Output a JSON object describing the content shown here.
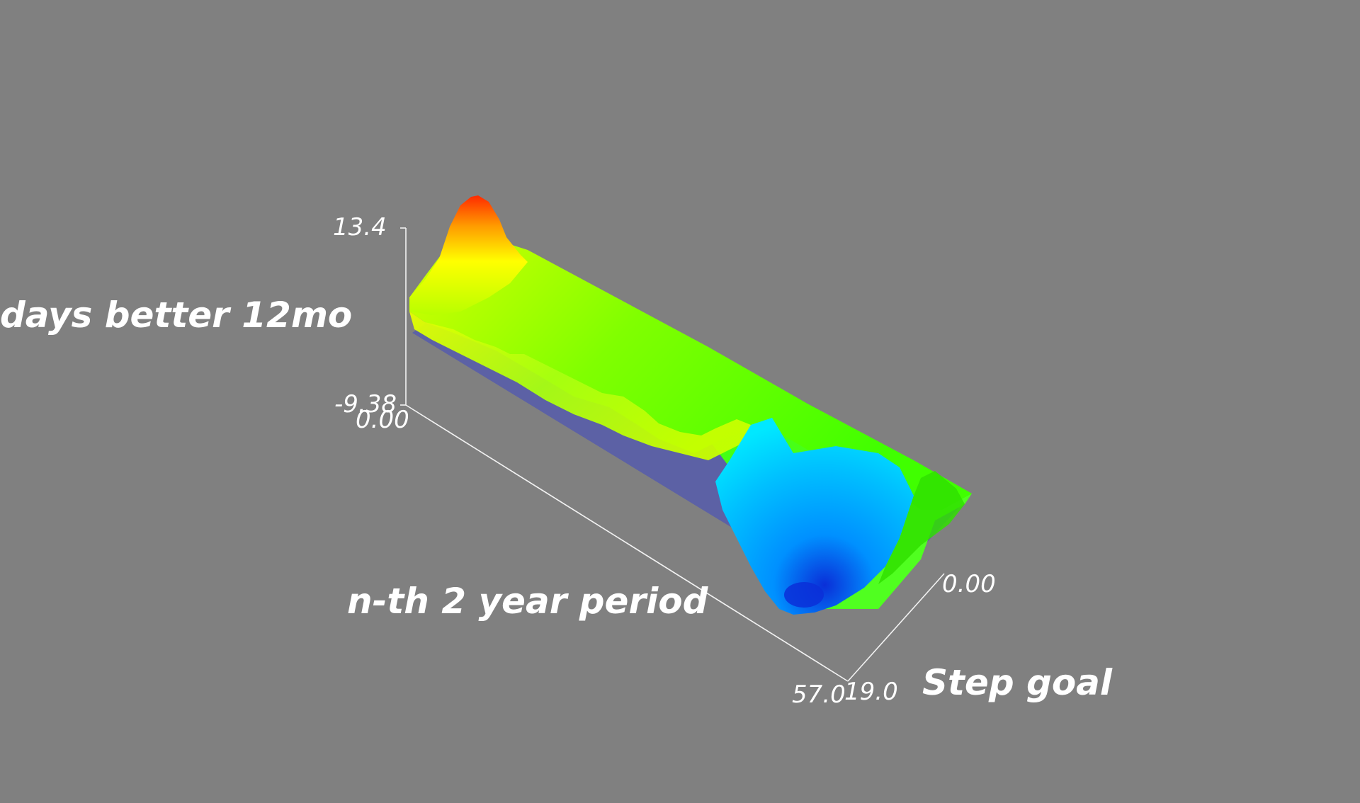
{
  "chart_data": {
    "type": "surface3d",
    "title": "",
    "axes": {
      "x": {
        "label": "Step goal",
        "range": [
          0.0,
          19.0
        ],
        "tick_labels": [
          "0.00",
          "19.0"
        ]
      },
      "y": {
        "label": "n-th 2 year period",
        "range": [
          0.0,
          57.0
        ],
        "tick_labels": [
          "0.00",
          "57.0"
        ]
      },
      "z": {
        "label": "days better 12mo",
        "range": [
          -9.38,
          13.4
        ],
        "tick_labels": [
          "-9.38",
          "13.4"
        ]
      }
    },
    "reference_plane": {
      "z": 0,
      "color": "#5a5fa6"
    },
    "colormap": [
      "#0a2fd8",
      "#00c8ff",
      "#00ffd0",
      "#38ff00",
      "#c8ff00",
      "#ffff00",
      "#ff9900",
      "#ff2a00"
    ],
    "series": [
      {
        "name": "",
        "y_index_samples": [
          0,
          3,
          6,
          10,
          15,
          20,
          25,
          30,
          35,
          40,
          45,
          50,
          54,
          57
        ],
        "z_front_edge": [
          1.5,
          13.4,
          5.5,
          3.0,
          2.5,
          3.5,
          2.5,
          3.0,
          2.0,
          3.5,
          -7.0,
          -9.38,
          -6.0,
          3.0
        ],
        "z_back_edge": [
          3.0,
          5.0,
          4.0,
          3.5,
          3.5,
          3.0,
          3.0,
          3.0,
          3.0,
          3.5,
          3.0,
          -1.5,
          2.0,
          3.0
        ]
      }
    ]
  }
}
